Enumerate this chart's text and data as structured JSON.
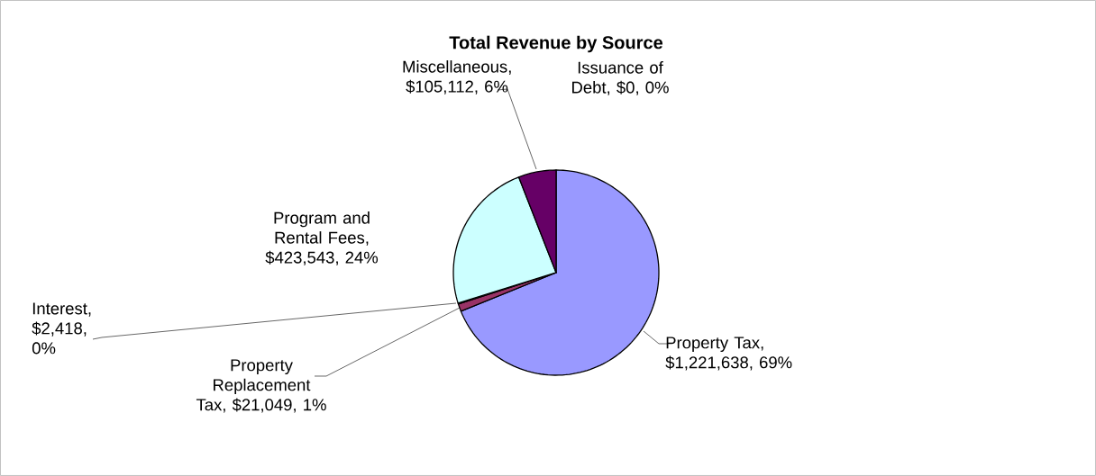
{
  "chart_data": {
    "type": "pie",
    "title": "Total Revenue by Source",
    "categories": [
      "Property Tax",
      "Property Replacement Tax",
      "Interest",
      "Program and Rental Fees",
      "Miscellaneous",
      "Issuance of Debt"
    ],
    "values": [
      1221638,
      21049,
      2418,
      423543,
      105112,
      0
    ],
    "value_labels": [
      ", $1,221,638, 69%",
      ", $21,049, 1%",
      ", $2,418, 0%",
      ", $423,543, 24%",
      ", $105,112, 6%",
      ", $0, 0%"
    ],
    "colors": [
      "#9999ff",
      "#993366",
      "#ffffcc",
      "#ccffff",
      "#660066",
      "#ff8080"
    ]
  }
}
